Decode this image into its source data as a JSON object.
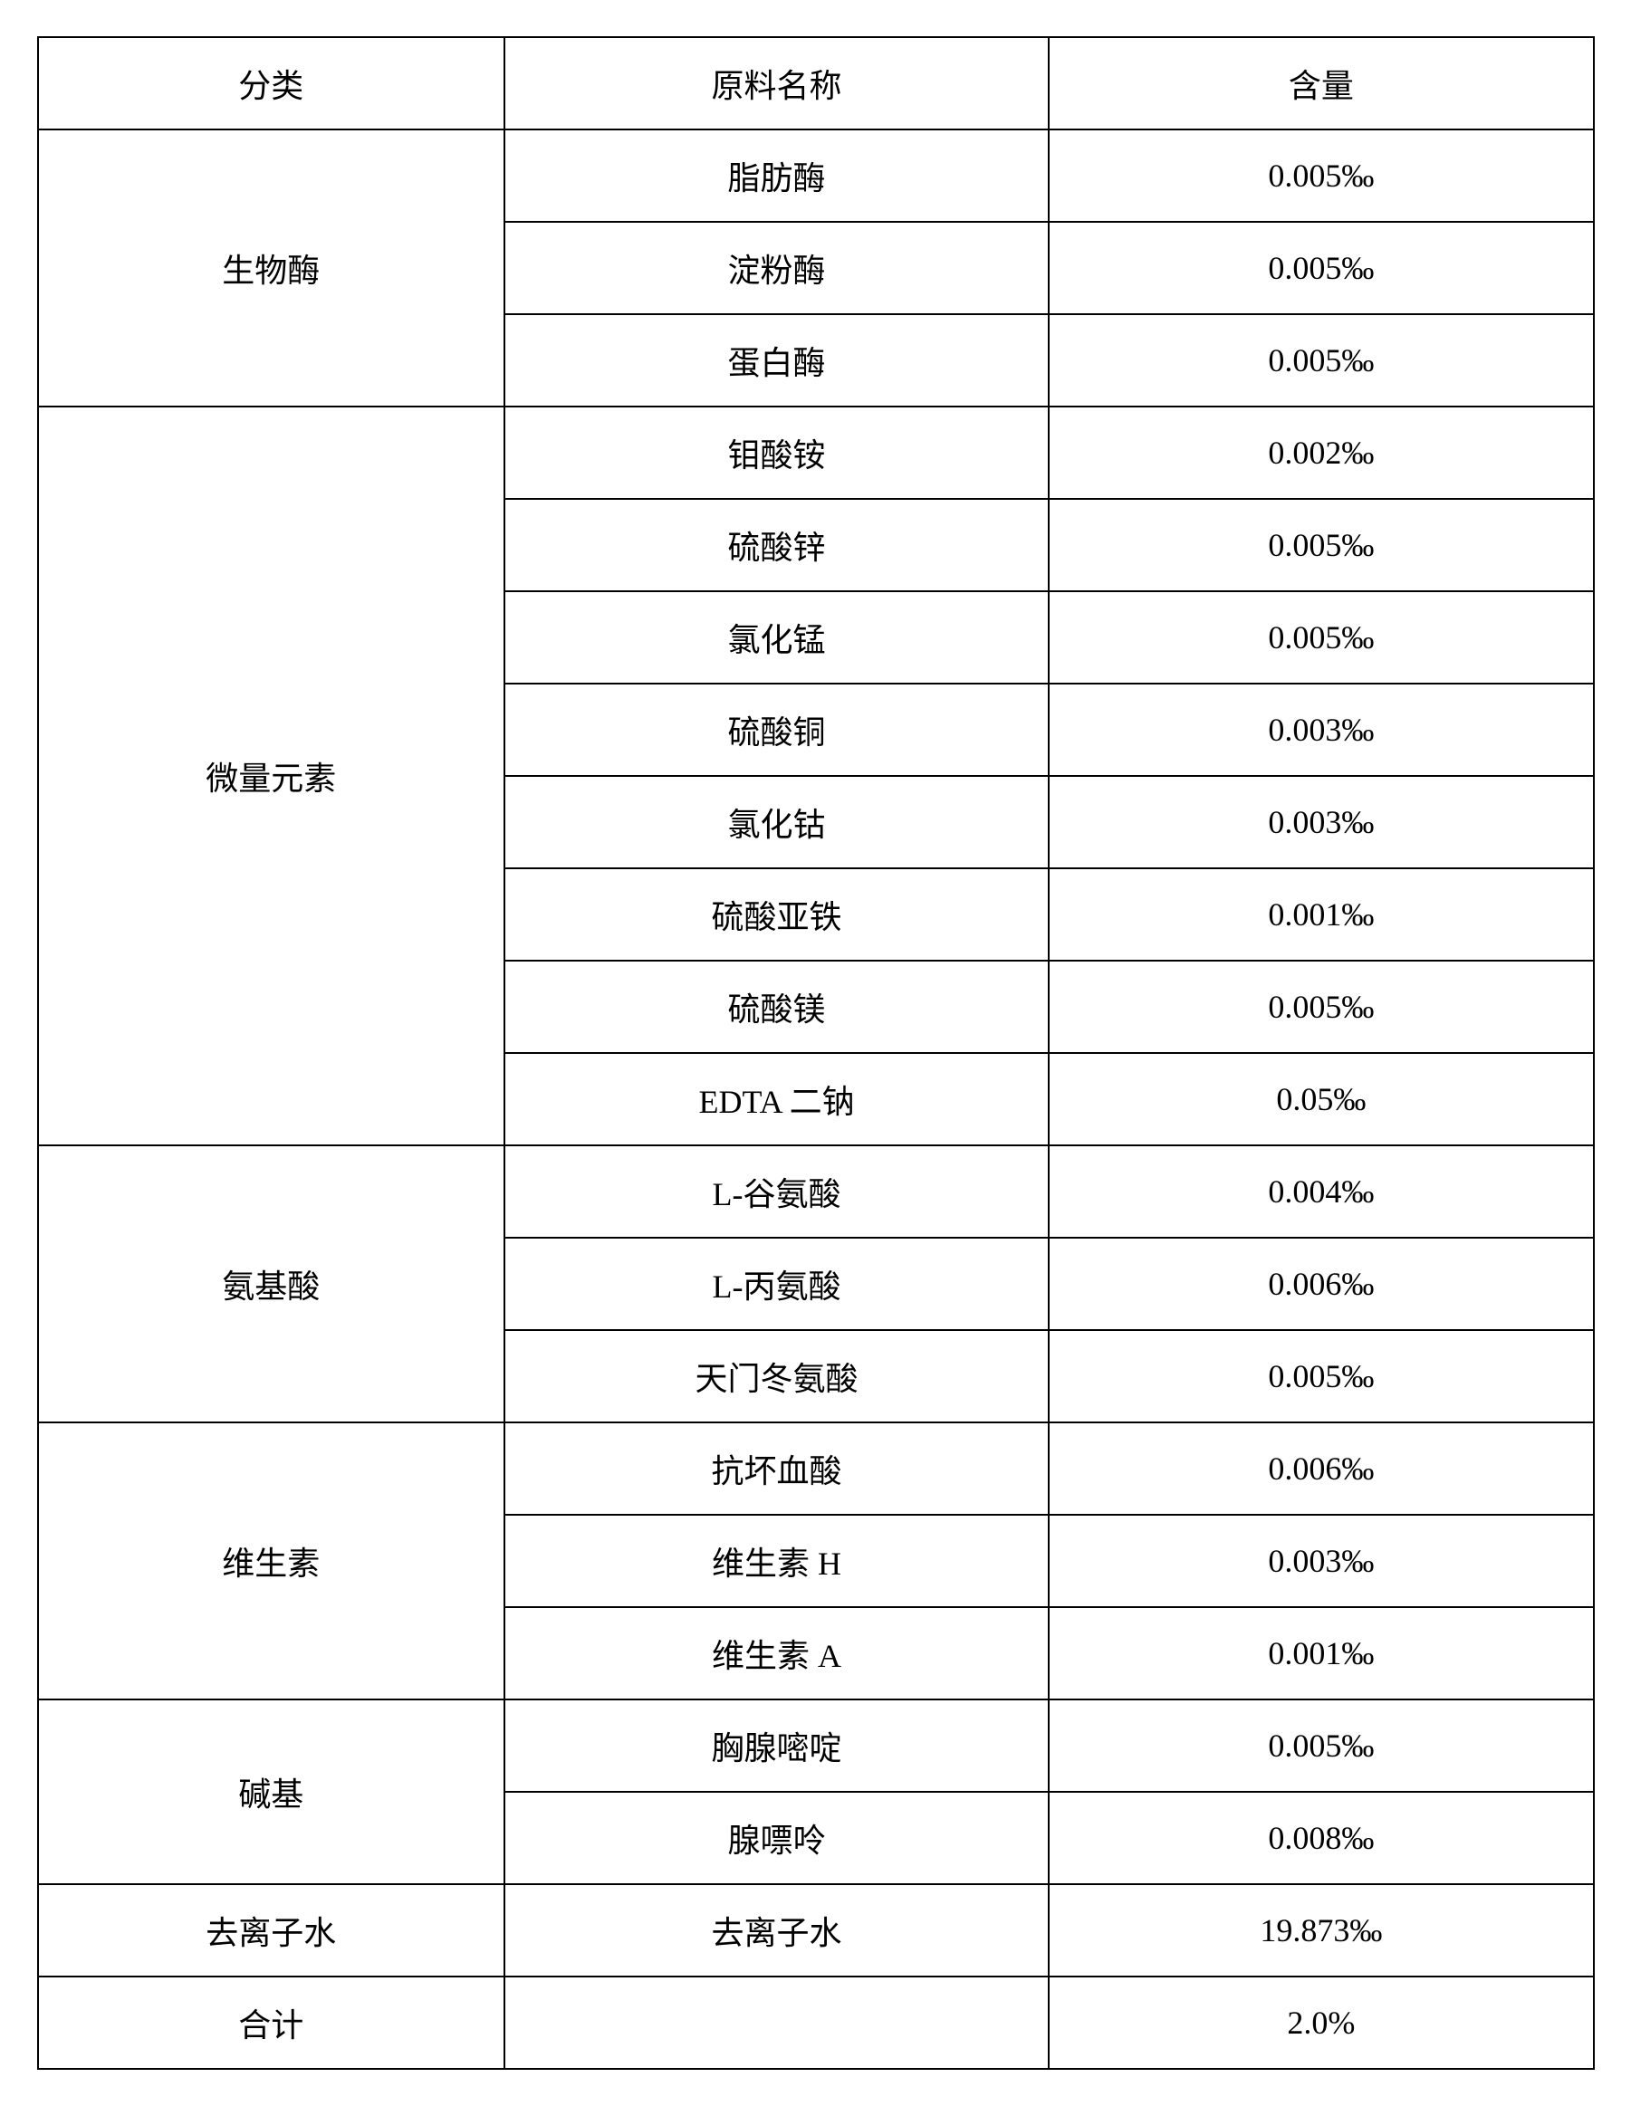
{
  "table": {
    "columns": [
      "分类",
      "原料名称",
      "含量"
    ],
    "column_widths": [
      "30%",
      "35%",
      "35%"
    ],
    "border_color": "#000000",
    "background_color": "#ffffff",
    "text_color": "#000000",
    "font_size": 36,
    "cell_padding": 24,
    "groups": [
      {
        "category": "生物酶",
        "rows": [
          {
            "name": "脂肪酶",
            "amount": "0.005‰"
          },
          {
            "name": "淀粉酶",
            "amount": "0.005‰"
          },
          {
            "name": "蛋白酶",
            "amount": "0.005‰"
          }
        ]
      },
      {
        "category": "微量元素",
        "rows": [
          {
            "name": "钼酸铵",
            "amount": "0.002‰"
          },
          {
            "name": "硫酸锌",
            "amount": "0.005‰"
          },
          {
            "name": "氯化锰",
            "amount": "0.005‰"
          },
          {
            "name": "硫酸铜",
            "amount": "0.003‰"
          },
          {
            "name": "氯化钴",
            "amount": "0.003‰"
          },
          {
            "name": "硫酸亚铁",
            "amount": "0.001‰"
          },
          {
            "name": "硫酸镁",
            "amount": "0.005‰"
          },
          {
            "name": "EDTA 二钠",
            "amount": "0.05‰"
          }
        ]
      },
      {
        "category": "氨基酸",
        "rows": [
          {
            "name": "L-谷氨酸",
            "amount": "0.004‰"
          },
          {
            "name": "L-丙氨酸",
            "amount": "0.006‰"
          },
          {
            "name": "天门冬氨酸",
            "amount": "0.005‰"
          }
        ]
      },
      {
        "category": "维生素",
        "rows": [
          {
            "name": "抗坏血酸",
            "amount": "0.006‰"
          },
          {
            "name": "维生素 H",
            "amount": "0.003‰"
          },
          {
            "name": "维生素 A",
            "amount": "0.001‰"
          }
        ]
      },
      {
        "category": "碱基",
        "rows": [
          {
            "name": "胸腺嘧啶",
            "amount": "0.005‰"
          },
          {
            "name": "腺嘌呤",
            "amount": "0.008‰"
          }
        ]
      },
      {
        "category": "去离子水",
        "rows": [
          {
            "name": "去离子水",
            "amount": "19.873‰"
          }
        ]
      }
    ],
    "total": {
      "label": "合计",
      "name": "",
      "amount": "2.0%"
    }
  }
}
